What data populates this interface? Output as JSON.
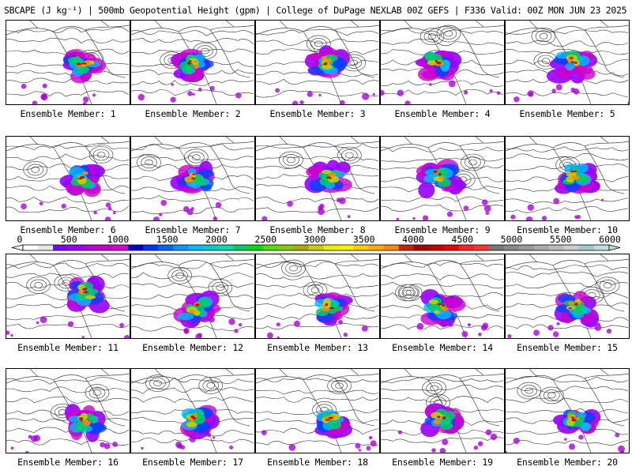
{
  "title": "SBCAPE (J kg⁻¹) | 500mb Geopotential Height (gpm) | College of DuPage NEXLAB 00Z GEFS | F336 Valid: 00Z MON JUN 23 2025",
  "member_label_prefix": "Ensemble Member: ",
  "members": [
    {
      "id": 1,
      "label": "Ensemble Member: 1"
    },
    {
      "id": 2,
      "label": "Ensemble Member: 2"
    },
    {
      "id": 3,
      "label": "Ensemble Member: 3"
    },
    {
      "id": 4,
      "label": "Ensemble Member: 4"
    },
    {
      "id": 5,
      "label": "Ensemble Member: 5"
    },
    {
      "id": 6,
      "label": "Ensemble Member: 6"
    },
    {
      "id": 7,
      "label": "Ensemble Member: 7"
    },
    {
      "id": 8,
      "label": "Ensemble Member: 8"
    },
    {
      "id": 9,
      "label": "Ensemble Member: 9"
    },
    {
      "id": 10,
      "label": "Ensemble Member: 10"
    },
    {
      "id": 11,
      "label": "Ensemble Member: 11"
    },
    {
      "id": 12,
      "label": "Ensemble Member: 12"
    },
    {
      "id": 13,
      "label": "Ensemble Member: 13"
    },
    {
      "id": 14,
      "label": "Ensemble Member: 14"
    },
    {
      "id": 15,
      "label": "Ensemble Member: 15"
    },
    {
      "id": 16,
      "label": "Ensemble Member: 16"
    },
    {
      "id": 17,
      "label": "Ensemble Member: 17"
    },
    {
      "id": 18,
      "label": "Ensemble Member: 18"
    },
    {
      "id": 19,
      "label": "Ensemble Member: 19"
    },
    {
      "id": 20,
      "label": "Ensemble Member: 20"
    }
  ],
  "colorbar": {
    "ticks": [
      "0",
      "500",
      "1000",
      "1500",
      "2000",
      "2500",
      "3000",
      "3500",
      "4000",
      "4500",
      "5000",
      "5500",
      "6000"
    ],
    "min": 0,
    "max": 6000,
    "colors": [
      "#ffffff",
      "#e8e8e8",
      "#7e00ff",
      "#9a00ff",
      "#b800e8",
      "#cc00cc",
      "#e000d8",
      "#0000cc",
      "#0033ff",
      "#0066ff",
      "#0099ff",
      "#00bbff",
      "#00cccc",
      "#00ddaa",
      "#00cc66",
      "#00dd00",
      "#55dd00",
      "#88cc00",
      "#aaaa00",
      "#cccc00",
      "#eeee00",
      "#ffee00",
      "#ffcc00",
      "#ffaa00",
      "#ff8800",
      "#cc2200",
      "#aa0000",
      "#cc0000",
      "#ee0000",
      "#ff2222",
      "#ff3333",
      "#777777",
      "#888888",
      "#999999",
      "#aaaaaa",
      "#bbbbbb",
      "#cccccc",
      "#99cccc",
      "#bbdddd"
    ]
  }
}
